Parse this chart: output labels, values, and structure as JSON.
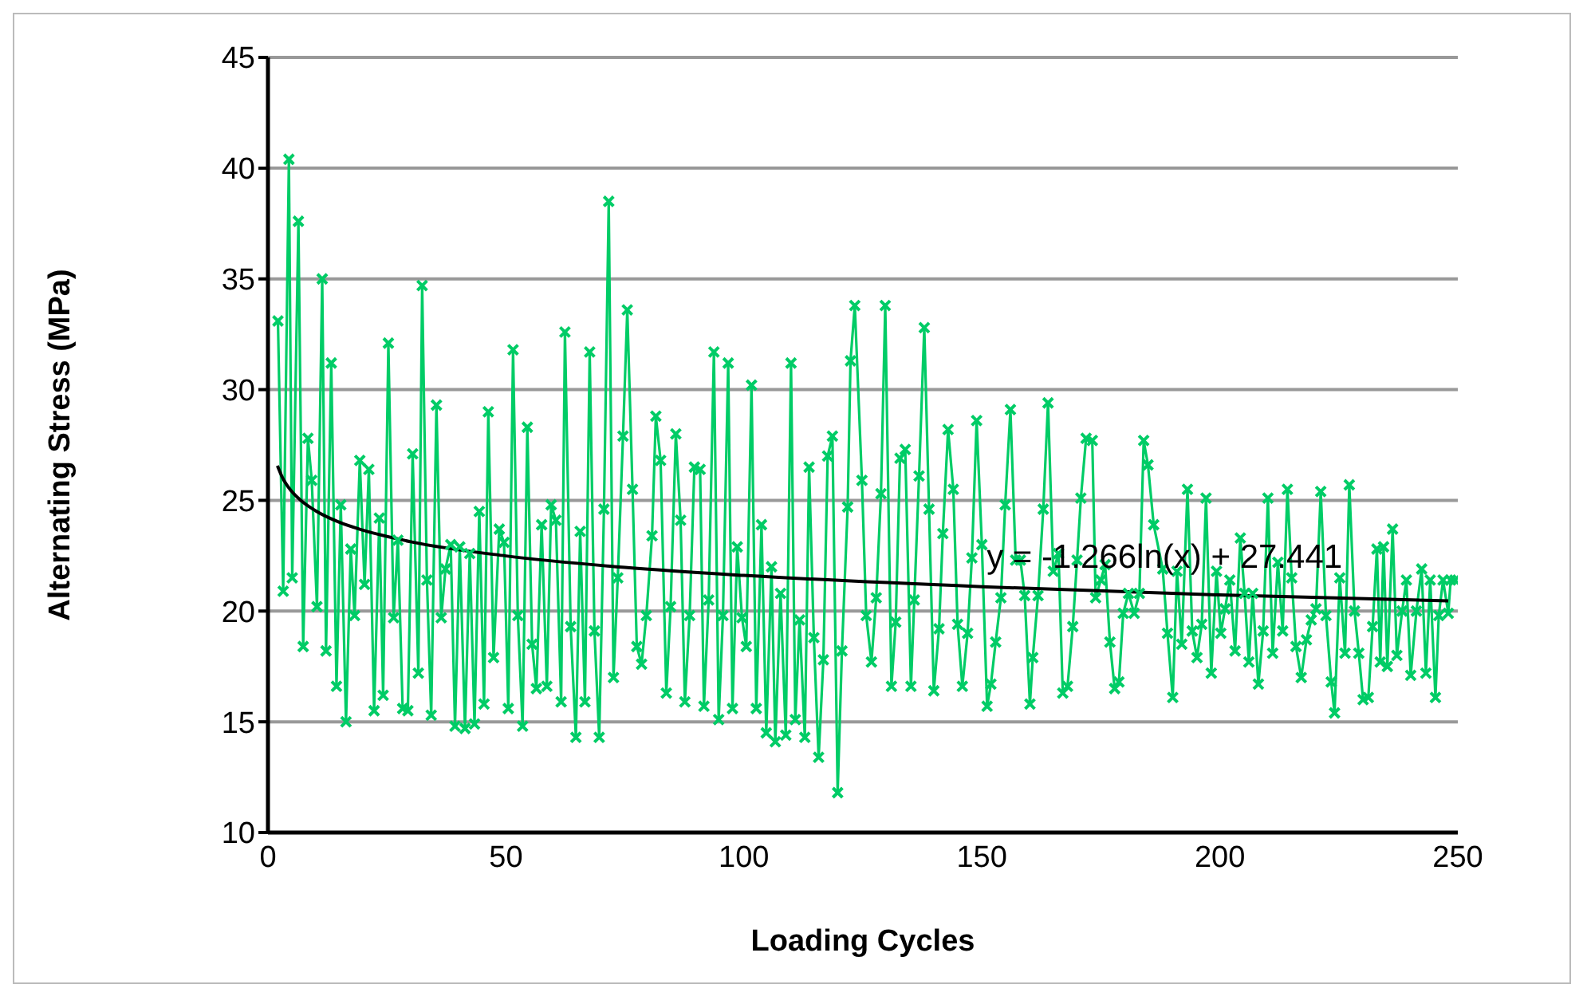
{
  "chart_data": {
    "type": "line",
    "xlabel": "Loading Cycles",
    "ylabel": "Alternating Stress (MPa)",
    "xlim": [
      0,
      250
    ],
    "xticks": [
      0,
      50,
      100,
      150,
      200,
      250
    ],
    "ylim": [
      10,
      45
    ],
    "yticks": [
      10,
      15,
      20,
      25,
      30,
      35,
      40,
      45
    ],
    "grid": "y",
    "marker": "cross",
    "line_style": "solid",
    "annotations": [
      {
        "text": "y = -1.266ln(x) + 27.441",
        "x": 151,
        "y": 22.5
      }
    ],
    "series": [
      {
        "color": "#00cc66",
        "x": [
          2.1,
          3.2,
          4.4,
          5.1,
          6.4,
          7.4,
          8.4,
          9.2,
          10.3,
          11.4,
          12.2,
          13.3,
          14.4,
          15.3,
          16.4,
          17.4,
          18.2,
          19.3,
          20.3,
          21.2,
          22.3,
          23.4,
          24.2,
          25.3,
          26.4,
          27.3,
          28.3,
          29.4,
          30.4,
          31.6,
          32.4,
          33.4,
          34.3,
          35.4,
          36.4,
          37.3,
          38.4,
          39.3,
          40.3,
          41.4,
          42.4,
          43.4,
          44.4,
          45.4,
          46.3,
          47.4,
          48.6,
          49.6,
          50.5,
          51.5,
          52.5,
          53.5,
          54.5,
          55.5,
          56.4,
          57.5,
          58.6,
          59.5,
          60.5,
          61.6,
          62.4,
          63.6,
          64.7,
          65.6,
          66.6,
          67.6,
          68.6,
          69.6,
          70.6,
          71.6,
          72.6,
          73.5,
          74.6,
          75.5,
          76.6,
          77.5,
          78.5,
          79.5,
          80.7,
          81.5,
          82.5,
          83.7,
          84.6,
          85.7,
          86.7,
          87.6,
          88.6,
          89.6,
          90.8,
          91.6,
          92.6,
          93.7,
          94.7,
          95.6,
          96.7,
          97.6,
          98.6,
          99.6,
          100.5,
          101.6,
          102.6,
          103.7,
          104.7,
          105.8,
          106.6,
          107.7,
          108.8,
          109.9,
          110.8,
          111.7,
          112.8,
          113.7,
          114.7,
          115.7,
          116.7,
          117.6,
          118.6,
          119.7,
          120.6,
          121.8,
          122.4,
          123.3,
          124.8,
          125.7,
          126.8,
          127.8,
          128.8,
          129.7,
          131.0,
          131.9,
          132.8,
          133.9,
          135.1,
          135.8,
          136.8,
          137.9,
          138.9,
          139.9,
          141.0,
          141.8,
          142.9,
          144.0,
          144.9,
          145.9,
          147.0,
          147.9,
          148.9,
          150.0,
          151.1,
          151.9,
          152.9,
          154.0,
          154.9,
          156.0,
          157.1,
          158.1,
          159.0,
          160.1,
          160.7,
          161.8,
          162.9,
          163.9,
          165.0,
          166.1,
          167.0,
          168.0,
          169.1,
          170.0,
          170.8,
          171.9,
          173.2,
          173.9,
          175.0,
          175.9,
          176.9,
          177.9,
          178.8,
          179.7,
          180.8,
          182.0,
          183.1,
          184.0,
          184.9,
          186.1,
          188.0,
          189.0,
          190.1,
          191.0,
          192.0,
          193.2,
          194.2,
          195.2,
          196.2,
          197.1,
          198.2,
          199.3,
          200.2,
          201.1,
          202.1,
          203.2,
          204.3,
          205.2,
          206.1,
          206.9,
          208.1,
          209.1,
          210.1,
          211.1,
          212.2,
          213.2,
          214.2,
          215.1,
          216.0,
          217.1,
          218.2,
          219.2,
          220.2,
          221.2,
          222.3,
          223.4,
          224.1,
          225.2,
          226.3,
          227.2,
          228.3,
          229.2,
          230.1,
          231.2,
          232.1,
          233.0,
          233.7,
          234.4,
          235.2,
          236.3,
          237.2,
          238.3,
          239.2,
          240.1,
          241.3,
          242.4,
          243.3,
          244.2,
          245.3,
          246.0,
          246.9,
          248.0,
          248.5,
          249.4
        ],
        "values": [
          33.1,
          20.9,
          40.4,
          21.5,
          37.6,
          18.4,
          27.8,
          25.9,
          20.2,
          35,
          18.2,
          31.2,
          16.6,
          24.8,
          15,
          22.8,
          19.8,
          26.8,
          21.2,
          26.4,
          15.5,
          24.2,
          16.2,
          32.1,
          19.7,
          23.2,
          15.6,
          15.5,
          27.1,
          17.2,
          34.7,
          21.4,
          15.3,
          29.3,
          19.7,
          21.9,
          23,
          14.8,
          22.9,
          14.7,
          22.6,
          14.9,
          24.5,
          15.8,
          29,
          17.9,
          23.7,
          23.1,
          15.6,
          31.8,
          19.8,
          14.8,
          28.3,
          18.5,
          16.5,
          23.9,
          16.6,
          24.8,
          24.1,
          15.9,
          32.6,
          19.3,
          14.3,
          23.6,
          15.9,
          31.7,
          19.1,
          14.3,
          24.6,
          38.5,
          17,
          21.5,
          27.9,
          33.6,
          25.5,
          18.4,
          17.6,
          19.8,
          23.4,
          28.8,
          26.8,
          16.3,
          20.2,
          28,
          24.1,
          15.9,
          19.8,
          26.5,
          26.4,
          15.7,
          20.5,
          31.7,
          15.1,
          19.8,
          31.2,
          15.6,
          22.9,
          19.7,
          18.4,
          30.2,
          15.6,
          23.9,
          14.5,
          22,
          14.1,
          20.8,
          14.4,
          31.2,
          15.1,
          19.6,
          14.3,
          26.5,
          18.8,
          13.4,
          17.8,
          27,
          27.9,
          11.8,
          18.2,
          24.7,
          31.3,
          33.8,
          25.9,
          19.8,
          17.7,
          20.6,
          25.3,
          33.8,
          16.6,
          19.5,
          26.9,
          27.3,
          16.6,
          20.5,
          26.1,
          32.8,
          24.6,
          16.4,
          19.2,
          23.5,
          28.2,
          25.5,
          19.4,
          16.6,
          19,
          22.4,
          28.6,
          23,
          15.7,
          16.7,
          18.6,
          20.6,
          24.8,
          29.1,
          22.3,
          22.3,
          20.7,
          15.8,
          17.9,
          20.7,
          24.6,
          29.4,
          21.8,
          22.6,
          16.3,
          16.6,
          19.3,
          22.3,
          25.1,
          27.8,
          27.7,
          20.6,
          21.4,
          22.1,
          18.6,
          16.5,
          16.8,
          19.9,
          20.8,
          19.9,
          20.8,
          27.7,
          26.6,
          23.9,
          21.9,
          19,
          16.1,
          21.8,
          18.5,
          25.5,
          19.1,
          17.9,
          19.4,
          25.1,
          17.2,
          21.8,
          19,
          20.1,
          21.4,
          18.2,
          23.3,
          20.8,
          17.7,
          20.8,
          16.7,
          19.1,
          25.1,
          18.1,
          22.2,
          19.1,
          25.5,
          21.5,
          18.4,
          17,
          18.7,
          19.6,
          20.1,
          25.4,
          19.8,
          16.8,
          15.4,
          21.5,
          18.1,
          25.7,
          20,
          18.1,
          16,
          16.1,
          19.3,
          22.8,
          17.7,
          22.9,
          17.5,
          23.7,
          18,
          20,
          21.4,
          17.1,
          20,
          21.9,
          17.2,
          21.4,
          16.1,
          19.8,
          21.4,
          19.9,
          21.4,
          21.4
        ]
      },
      {
        "color": "#000000",
        "marker": "none",
        "x": [
          2,
          3,
          5,
          7,
          10,
          15,
          20,
          30,
          50,
          75,
          100,
          150,
          200,
          248
        ],
        "values": [
          26.56,
          26.05,
          25.4,
          24.98,
          24.53,
          24.01,
          23.65,
          23.13,
          22.49,
          21.97,
          21.61,
          21.1,
          20.73,
          20.46
        ]
      }
    ]
  }
}
